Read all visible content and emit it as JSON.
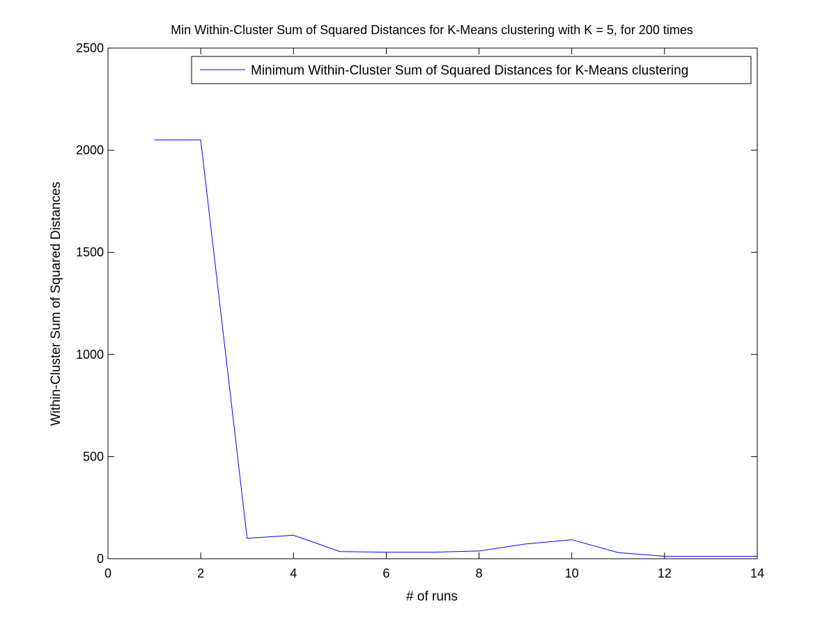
{
  "chart_data": {
    "type": "line",
    "title": "Min Within-Cluster Sum of Squared Distances for K-Means clustering with K = 5, for 200 times",
    "xlabel": "# of runs",
    "ylabel": "Within-Cluster Sum of Squared Distances",
    "xlim": [
      0,
      14
    ],
    "ylim": [
      0,
      2500
    ],
    "xticks": [
      0,
      2,
      4,
      6,
      8,
      10,
      12,
      14
    ],
    "yticks": [
      0,
      500,
      1000,
      1500,
      2000,
      2500
    ],
    "grid": false,
    "legend": "top-right",
    "series": [
      {
        "name": "Minimum Within-Cluster Sum of Squared Distances for K-Means clustering",
        "color": "#0000ff",
        "x": [
          1,
          2,
          3,
          4,
          5,
          6,
          7,
          8,
          9,
          10,
          11,
          12,
          13,
          14
        ],
        "y": [
          2050,
          2050,
          100,
          115,
          35,
          32,
          32,
          38,
          72,
          93,
          30,
          12,
          12,
          12
        ]
      }
    ]
  }
}
